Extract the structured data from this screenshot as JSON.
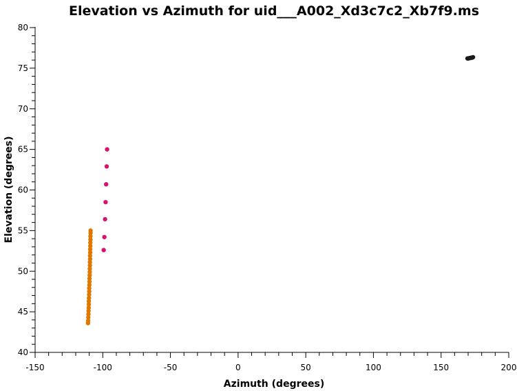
{
  "chart_data": {
    "type": "scatter",
    "title": "Elevation vs Azimuth for uid___A002_Xd3c7c2_Xb7f9.ms",
    "xlabel": "Azimuth (degrees)",
    "ylabel": "Elevation (degrees)",
    "xlim": [
      -150,
      200
    ],
    "ylim": [
      40,
      80
    ],
    "xticks": [
      -150,
      -100,
      -50,
      0,
      50,
      100,
      150,
      200
    ],
    "yticks": [
      40,
      45,
      50,
      55,
      60,
      65,
      70,
      75,
      80
    ],
    "xtick_labels": [
      "-150",
      "-100",
      "-50",
      "0",
      "50",
      "100",
      "150",
      "200"
    ],
    "ytick_labels": [
      "40",
      "45",
      "50",
      "55",
      "60",
      "65",
      "70",
      "75",
      "80"
    ],
    "x_minor_step": 10,
    "y_minor_step": 1,
    "grid": false,
    "series": [
      {
        "color": "#e07800",
        "points": [
          {
            "x": -110.9,
            "y": 43.6
          },
          {
            "x": -110.8,
            "y": 43.9
          },
          {
            "x": -110.7,
            "y": 44.3
          },
          {
            "x": -110.6,
            "y": 44.7
          },
          {
            "x": -110.5,
            "y": 45.1
          },
          {
            "x": -110.4,
            "y": 45.5
          },
          {
            "x": -110.3,
            "y": 45.9
          },
          {
            "x": -110.3,
            "y": 46.3
          },
          {
            "x": -110.2,
            "y": 46.7
          },
          {
            "x": -110.1,
            "y": 47.1
          },
          {
            "x": -110.0,
            "y": 47.5
          },
          {
            "x": -110.0,
            "y": 47.9
          },
          {
            "x": -109.9,
            "y": 48.3
          },
          {
            "x": -109.8,
            "y": 48.7
          },
          {
            "x": -109.8,
            "y": 49.1
          },
          {
            "x": -109.7,
            "y": 49.5
          },
          {
            "x": -109.6,
            "y": 49.9
          },
          {
            "x": -109.6,
            "y": 50.3
          },
          {
            "x": -109.5,
            "y": 50.7
          },
          {
            "x": -109.5,
            "y": 51.1
          },
          {
            "x": -109.4,
            "y": 51.5
          },
          {
            "x": -109.4,
            "y": 51.9
          },
          {
            "x": -109.3,
            "y": 52.3
          },
          {
            "x": -109.3,
            "y": 52.7
          },
          {
            "x": -109.2,
            "y": 53.1
          },
          {
            "x": -109.2,
            "y": 53.5
          },
          {
            "x": -109.1,
            "y": 53.9
          },
          {
            "x": -109.1,
            "y": 54.3
          },
          {
            "x": -109.0,
            "y": 54.7
          },
          {
            "x": -109.0,
            "y": 55.0
          }
        ]
      },
      {
        "color": "#d4146e",
        "points": [
          {
            "x": -99.3,
            "y": 52.6
          },
          {
            "x": -98.8,
            "y": 54.2
          },
          {
            "x": -98.3,
            "y": 56.4
          },
          {
            "x": -97.9,
            "y": 58.5
          },
          {
            "x": -97.5,
            "y": 60.7
          },
          {
            "x": -97.1,
            "y": 62.9
          },
          {
            "x": -96.8,
            "y": 65.0
          }
        ]
      },
      {
        "color": "#1a1a1a",
        "points": [
          {
            "x": 169.5,
            "y": 76.2
          },
          {
            "x": 170.2,
            "y": 76.2
          },
          {
            "x": 170.9,
            "y": 76.25
          },
          {
            "x": 171.6,
            "y": 76.25
          },
          {
            "x": 172.3,
            "y": 76.3
          },
          {
            "x": 173.0,
            "y": 76.3
          },
          {
            "x": 173.6,
            "y": 76.35
          }
        ]
      }
    ]
  }
}
